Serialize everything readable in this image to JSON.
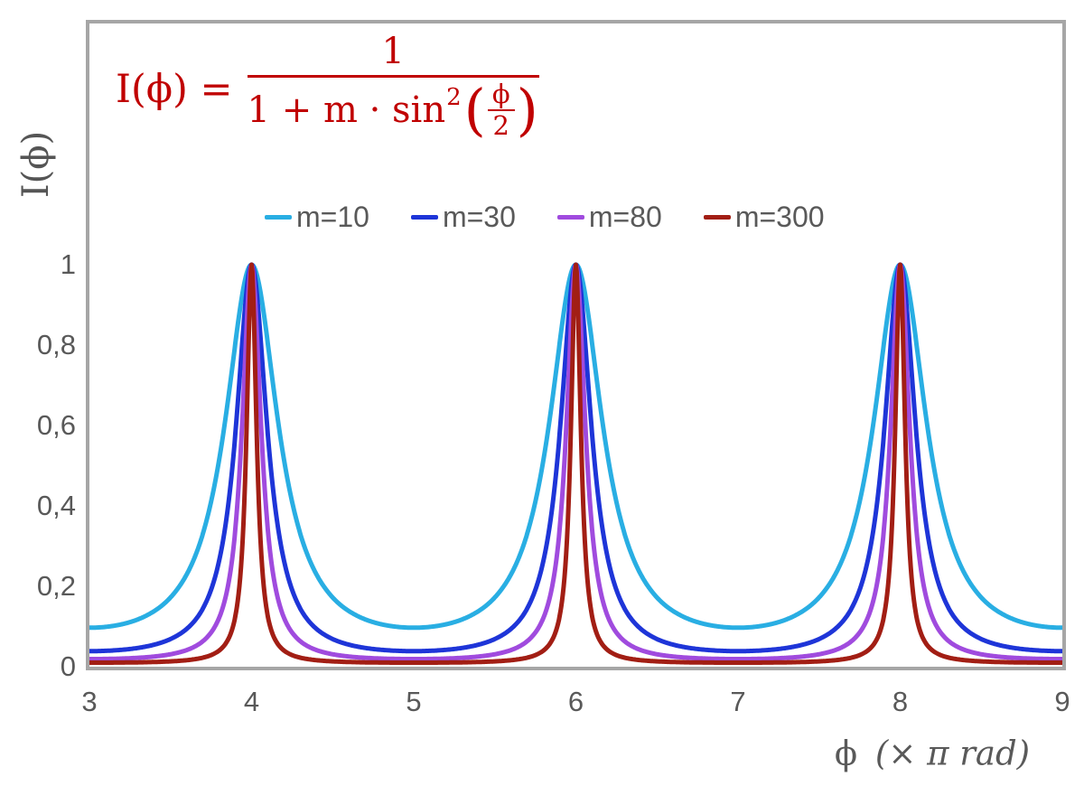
{
  "figure": {
    "background": "#FFFFFF",
    "frame_color": "#A6A6A6",
    "axis_text_color": "#595959",
    "formula_color": "#C00000"
  },
  "formula": {
    "lhs": "I(ϕ) =",
    "numerator": "1",
    "den_prefix": "1 + m · sin",
    "den_sup": "2",
    "paren_open": "(",
    "inner_num": "ϕ",
    "inner_den": "2",
    "paren_close": ")"
  },
  "axes": {
    "y_title": "I(ϕ)",
    "x_title_phi": "ϕ",
    "x_title_rest": "(× π rad)",
    "x_ticks": [
      "3",
      "4",
      "5",
      "6",
      "7",
      "8",
      "9"
    ],
    "y_ticks": [
      {
        "label": "1",
        "value": 1.0
      },
      {
        "label": "0,8",
        "value": 0.8
      },
      {
        "label": "0,6",
        "value": 0.6
      },
      {
        "label": "0,4",
        "value": 0.4
      },
      {
        "label": "0,2",
        "value": 0.2
      },
      {
        "label": "0",
        "value": 0.0
      }
    ]
  },
  "chart_data": {
    "type": "line",
    "title": "Airy-type transmission function I(ϕ) = 1 / (1 + m·sin²(ϕ/2))",
    "xlabel": "ϕ (× π rad)",
    "ylabel": "I(ϕ)",
    "x_range": [
      3,
      9
    ],
    "y_range": [
      0,
      1
    ],
    "grid": false,
    "legend_position": "top-center",
    "peaks_at_x": [
      4,
      6,
      8
    ],
    "x_units": "multiples of π rad",
    "generating_formula": "I(x) = 1 / (1 + m * sin(pi*x/2)^2)",
    "sample_x": [
      3,
      3.5,
      4,
      4.5,
      5,
      5.5,
      6,
      6.5,
      7,
      7.5,
      8,
      8.5,
      9
    ],
    "series": [
      {
        "name": "m=10",
        "m": 10,
        "color": "#29AEE3",
        "peak_value": 1,
        "min_value": 0.091,
        "sample_values": [
          0.091,
          0.167,
          1,
          0.167,
          0.091,
          0.167,
          1,
          0.167,
          0.091,
          0.167,
          1,
          0.167,
          0.091
        ]
      },
      {
        "name": "m=30",
        "m": 30,
        "color": "#1E35D8",
        "peak_value": 1,
        "min_value": 0.032,
        "sample_values": [
          0.032,
          0.063,
          1,
          0.063,
          0.032,
          0.063,
          1,
          0.063,
          0.032,
          0.063,
          1,
          0.063,
          0.032
        ]
      },
      {
        "name": "m=80",
        "m": 80,
        "color": "#A04BDE",
        "peak_value": 1,
        "min_value": 0.012,
        "sample_values": [
          0.012,
          0.024,
          1,
          0.024,
          0.012,
          0.024,
          1,
          0.024,
          0.012,
          0.024,
          1,
          0.024,
          0.012
        ]
      },
      {
        "name": "m=300",
        "m": 300,
        "color": "#A21E14",
        "peak_value": 1,
        "min_value": 0.003,
        "sample_values": [
          0.003,
          0.007,
          1,
          0.007,
          0.003,
          0.007,
          1,
          0.007,
          0.003,
          0.007,
          1,
          0.007,
          0.003
        ]
      }
    ]
  }
}
